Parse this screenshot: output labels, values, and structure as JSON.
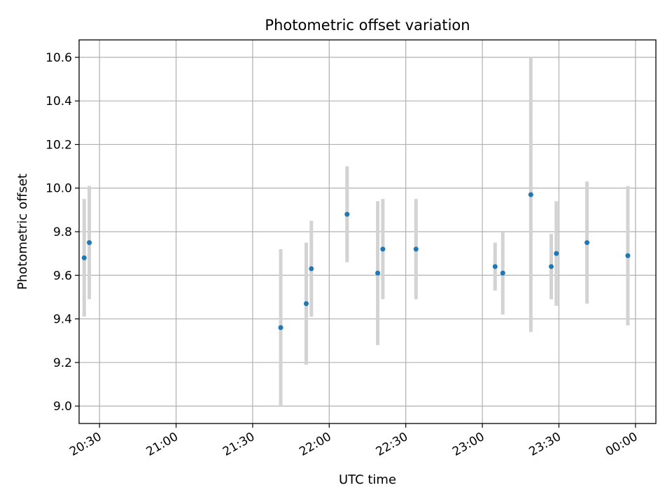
{
  "chart_data": {
    "type": "scatter",
    "title": "Photometric offset variation",
    "xlabel": "UTC time",
    "ylabel": "Photometric offset",
    "x_axis_kind": "time",
    "xlim": [
      "20:22",
      "00:08"
    ],
    "ylim": [
      8.92,
      10.68
    ],
    "grid": true,
    "xticks": [
      {
        "value": "20:30",
        "label": "20:30"
      },
      {
        "value": "21:00",
        "label": "21:00"
      },
      {
        "value": "21:30",
        "label": "21:30"
      },
      {
        "value": "22:00",
        "label": "22:00"
      },
      {
        "value": "22:30",
        "label": "22:30"
      },
      {
        "value": "23:00",
        "label": "23:00"
      },
      {
        "value": "23:30",
        "label": "23:30"
      },
      {
        "value": "00:00",
        "label": "00:00"
      }
    ],
    "yticks": [
      {
        "value": 9.0,
        "label": "9.0"
      },
      {
        "value": 9.2,
        "label": "9.2"
      },
      {
        "value": 9.4,
        "label": "9.4"
      },
      {
        "value": 9.6,
        "label": "9.6"
      },
      {
        "value": 9.8,
        "label": "9.8"
      },
      {
        "value": 10.0,
        "label": "10.0"
      },
      {
        "value": 10.2,
        "label": "10.2"
      },
      {
        "value": 10.4,
        "label": "10.4"
      },
      {
        "value": 10.6,
        "label": "10.6"
      }
    ],
    "colors": {
      "marker": "#1f77b4",
      "errorbar": "#d3d3d3",
      "grid": "#b0b0b0"
    },
    "points": [
      {
        "x": "20:24",
        "y": 9.68,
        "err": 0.27
      },
      {
        "x": "20:26",
        "y": 9.75,
        "err": 0.26
      },
      {
        "x": "21:41",
        "y": 9.36,
        "err": 0.36
      },
      {
        "x": "21:51",
        "y": 9.47,
        "err": 0.28
      },
      {
        "x": "21:53",
        "y": 9.63,
        "err": 0.22
      },
      {
        "x": "22:07",
        "y": 9.88,
        "err": 0.22
      },
      {
        "x": "22:19",
        "y": 9.61,
        "err": 0.33
      },
      {
        "x": "22:21",
        "y": 9.72,
        "err": 0.23
      },
      {
        "x": "22:34",
        "y": 9.72,
        "err": 0.23
      },
      {
        "x": "23:05",
        "y": 9.64,
        "err": 0.11
      },
      {
        "x": "23:08",
        "y": 9.61,
        "err": 0.19
      },
      {
        "x": "23:19",
        "y": 9.97,
        "err": 0.63
      },
      {
        "x": "23:27",
        "y": 9.64,
        "err": 0.15
      },
      {
        "x": "23:29",
        "y": 9.7,
        "err": 0.24
      },
      {
        "x": "23:41",
        "y": 9.75,
        "err": 0.28
      },
      {
        "x": "23:57",
        "y": 9.69,
        "err": 0.32
      }
    ]
  }
}
